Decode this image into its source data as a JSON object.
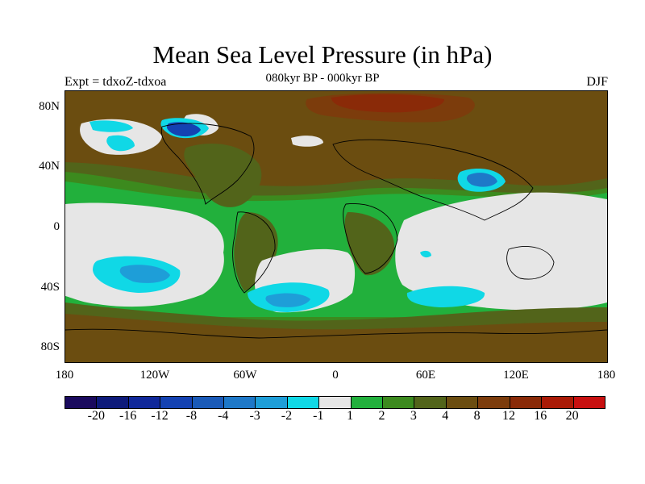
{
  "title": "Mean Sea Level Pressure (in hPa)",
  "subtitle": "080kyr BP - 000kyr BP",
  "experiment_label": "Expt = tdxoZ-tdxoa",
  "season": "DJF",
  "map": {
    "projection": "cylindrical equidistant",
    "lon_range": [
      -180,
      180
    ],
    "lat_range": [
      -90,
      90
    ],
    "coastlines": true
  },
  "axes": {
    "y_ticks": [
      "80N",
      "40N",
      "0",
      "40S",
      "80S"
    ],
    "x_ticks": [
      "180",
      "120W",
      "60W",
      "0",
      "60E",
      "120E",
      "180"
    ]
  },
  "colorbar": {
    "colors": [
      "#1a0a5e",
      "#0d1a7a",
      "#10289a",
      "#1442b2",
      "#1a5ab8",
      "#1e78c8",
      "#1e9ed8",
      "#10d8e6",
      "#e6e6e6",
      "#22b03c",
      "#3c8a1e",
      "#52641a",
      "#6b4d10",
      "#7c3c0c",
      "#8a2a08",
      "#aa1a06",
      "#c81010"
    ],
    "labels": [
      "-20",
      "-16",
      "-12",
      "-8",
      "-4",
      "-3",
      "-2",
      "-1",
      "1",
      "2",
      "3",
      "4",
      "8",
      "12",
      "16",
      "20"
    ]
  }
}
